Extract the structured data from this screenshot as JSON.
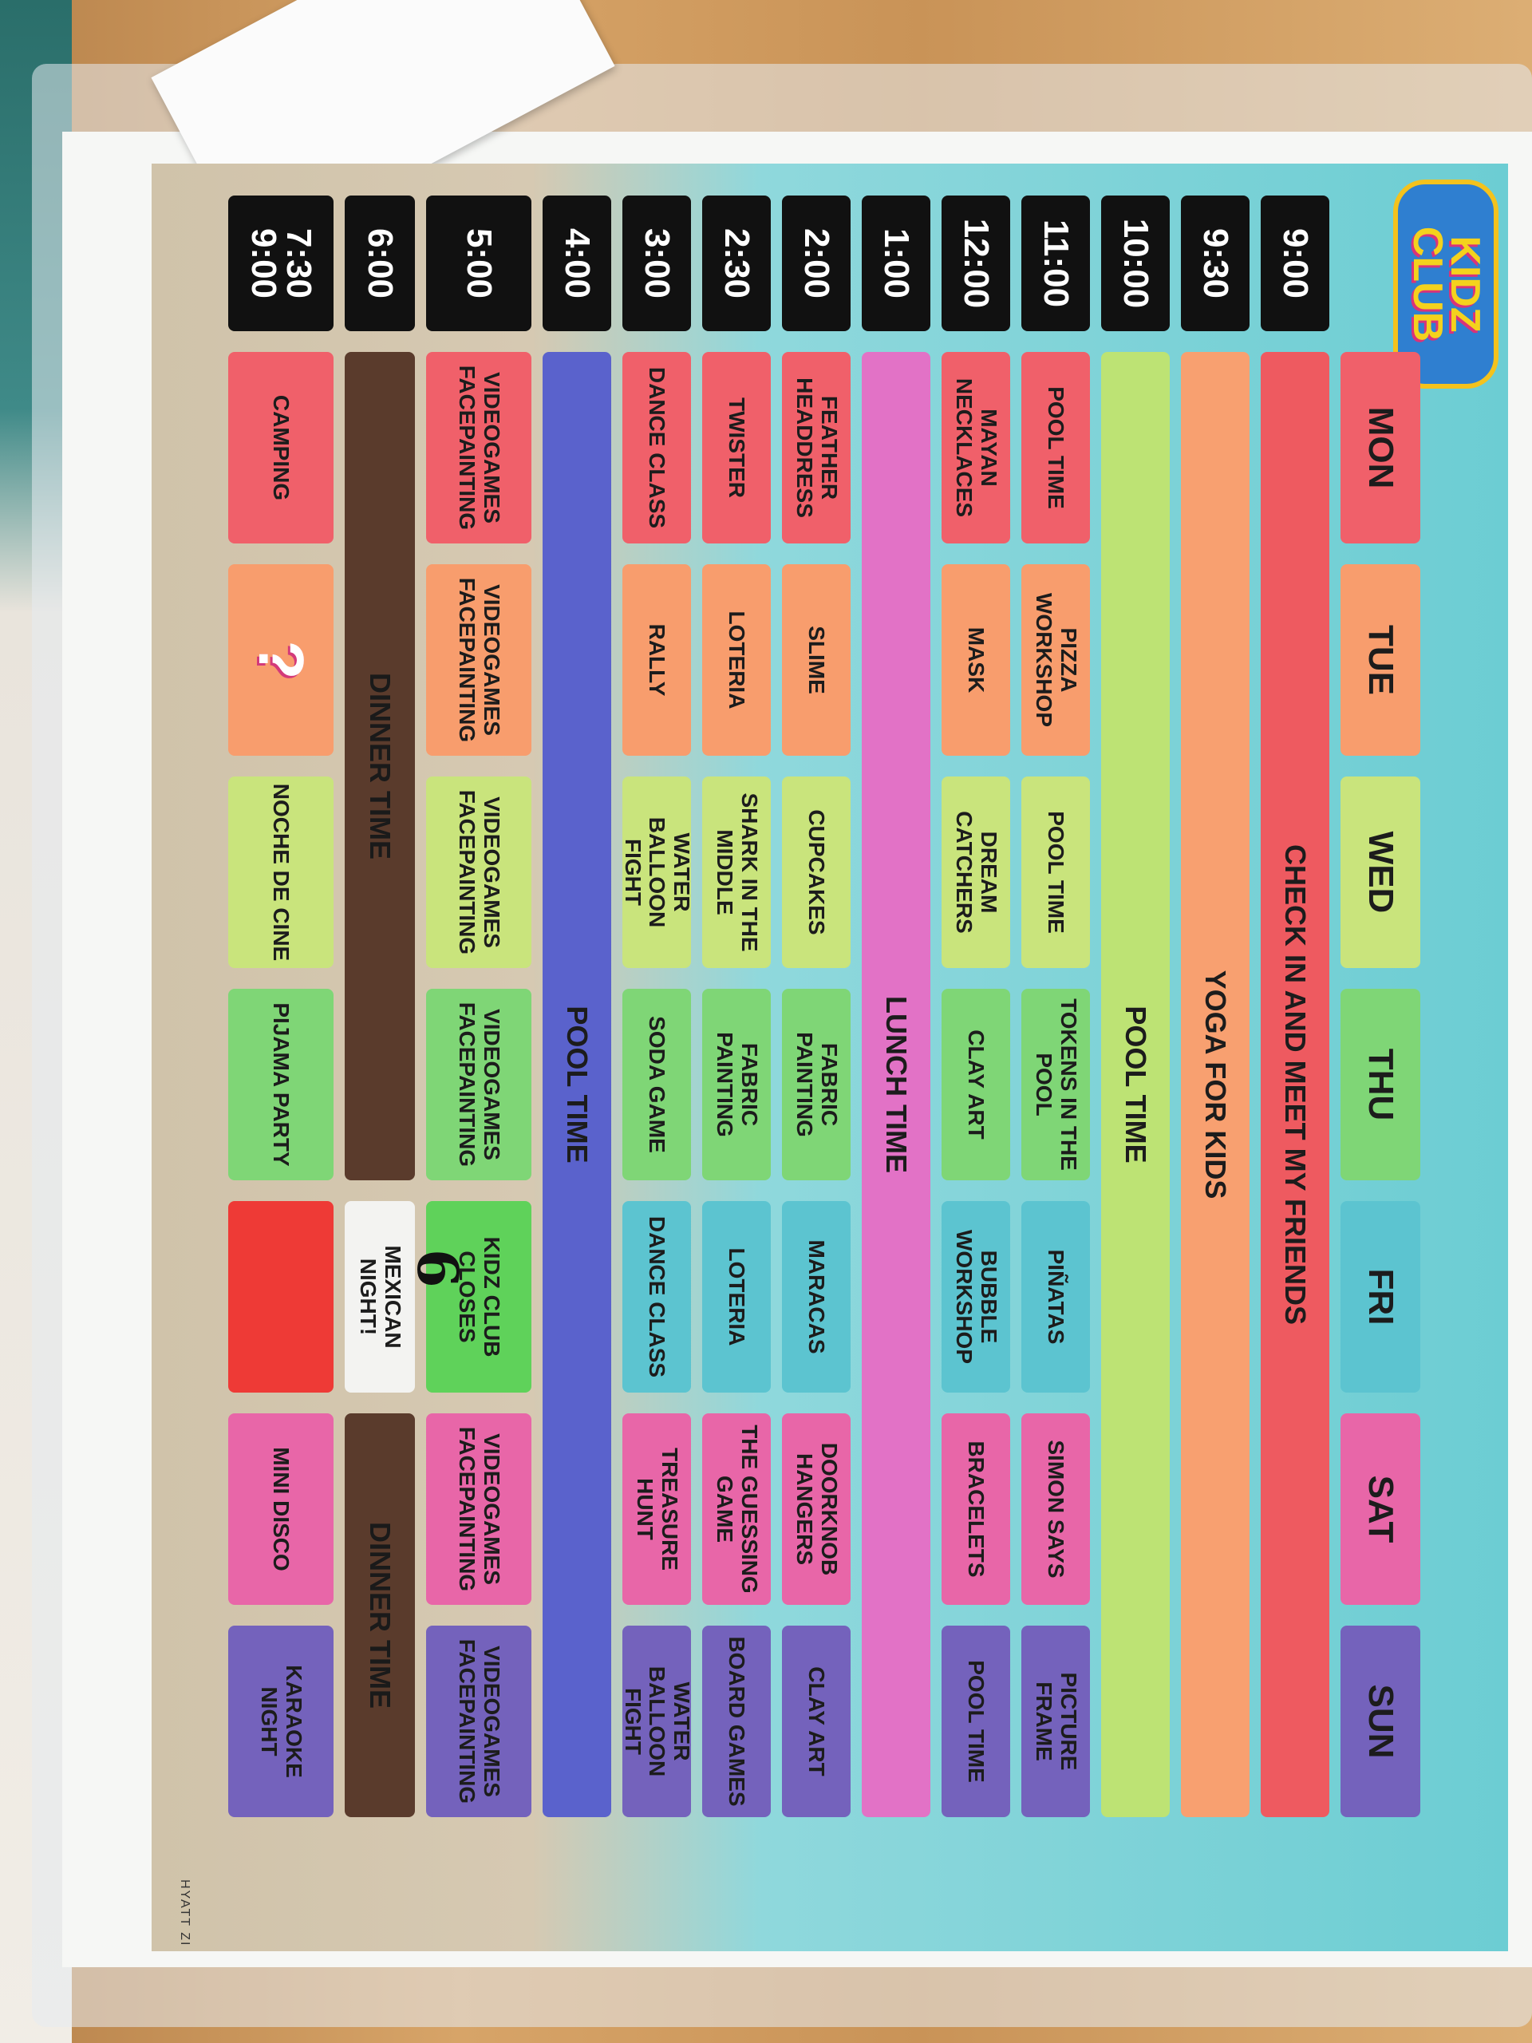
{
  "header": {
    "logo_text": "KIDZ CLUB"
  },
  "days": [
    {
      "label": "MON",
      "color": "#f0606a"
    },
    {
      "label": "TUE",
      "color": "#f89d6d"
    },
    {
      "label": "WED",
      "color": "#c9e47c"
    },
    {
      "label": "THU",
      "color": "#7fd676"
    },
    {
      "label": "FRI",
      "color": "#5cc4d0"
    },
    {
      "label": "SAT",
      "color": "#e866a8"
    },
    {
      "label": "SUN",
      "color": "#7462bc"
    }
  ],
  "rows": [
    {
      "time": "9:00",
      "cells": [
        {
          "text": "CHECK IN AND MEET MY FRIENDS",
          "span": 7,
          "color": "#ee5a60",
          "wide": true
        }
      ]
    },
    {
      "time": "9:30",
      "cells": [
        {
          "text": "YOGA FOR KIDS",
          "span": 7,
          "color": "#f8a070",
          "wide": true
        }
      ]
    },
    {
      "time": "10:00",
      "cells": [
        {
          "text": "POOL TIME",
          "span": 7,
          "color": "#bde374",
          "wide": true
        }
      ]
    },
    {
      "time": "11:00",
      "cells": [
        {
          "text": "POOL TIME",
          "color": "#f0606a"
        },
        {
          "text": "PIZZA WORKSHOP",
          "color": "#f89d6d"
        },
        {
          "text": "POOL TIME",
          "color": "#c9e47c"
        },
        {
          "text": "TOKENS IN THE POOL",
          "color": "#7fd676"
        },
        {
          "text": "PIÑATAS",
          "color": "#5cc4d0"
        },
        {
          "text": "SIMON SAYS",
          "color": "#e866a8"
        },
        {
          "text": "PICTURE FRAME",
          "color": "#7462bc"
        }
      ]
    },
    {
      "time": "12:00",
      "cells": [
        {
          "text": "MAYAN NECKLACES",
          "color": "#f0606a"
        },
        {
          "text": "MASK",
          "color": "#f89d6d"
        },
        {
          "text": "DREAM CATCHERS",
          "color": "#c9e47c"
        },
        {
          "text": "CLAY ART",
          "color": "#7fd676"
        },
        {
          "text": "BUBBLE WORKSHOP",
          "color": "#5cc4d0"
        },
        {
          "text": "BRACELETS",
          "color": "#e866a8"
        },
        {
          "text": "POOL TIME",
          "color": "#7462bc"
        }
      ]
    },
    {
      "time": "1:00",
      "cells": [
        {
          "text": "LUNCH TIME",
          "span": 7,
          "color": "#e272c6",
          "wide": true
        }
      ]
    },
    {
      "time": "2:00",
      "cells": [
        {
          "text": "FEATHER HEADDRESS",
          "color": "#f0606a"
        },
        {
          "text": "SLIME",
          "color": "#f89d6d"
        },
        {
          "text": "CUPCAKES",
          "color": "#c9e47c"
        },
        {
          "text": "FABRIC PAINTING",
          "color": "#7fd676"
        },
        {
          "text": "MARACAS",
          "color": "#5cc4d0"
        },
        {
          "text": "DOORKNOB HANGERS",
          "color": "#e866a8"
        },
        {
          "text": "CLAY ART",
          "color": "#7462bc"
        }
      ]
    },
    {
      "time": "2:30",
      "cells": [
        {
          "text": "TWISTER",
          "color": "#f0606a"
        },
        {
          "text": "LOTERIA",
          "color": "#f89d6d"
        },
        {
          "text": "SHARK IN THE MIDDLE",
          "color": "#c9e47c"
        },
        {
          "text": "FABRIC PAINTING",
          "color": "#7fd676"
        },
        {
          "text": "LOTERIA",
          "color": "#5cc4d0"
        },
        {
          "text": "THE GUESSING GAME",
          "color": "#e866a8"
        },
        {
          "text": "BOARD GAMES",
          "color": "#7462bc"
        }
      ]
    },
    {
      "time": "3:00",
      "cells": [
        {
          "text": "DANCE CLASS",
          "color": "#f0606a"
        },
        {
          "text": "RALLY",
          "color": "#f89d6d"
        },
        {
          "text": "WATER BALLOON FIGHT",
          "color": "#c9e47c"
        },
        {
          "text": "SODA GAME",
          "color": "#7fd676"
        },
        {
          "text": "DANCE CLASS",
          "color": "#5cc4d0"
        },
        {
          "text": "TREASURE HUNT",
          "color": "#e866a8"
        },
        {
          "text": "WATER BALLOON FIGHT",
          "color": "#7462bc"
        }
      ]
    },
    {
      "time": "4:00",
      "cells": [
        {
          "text": "POOL TIME",
          "span": 7,
          "color": "#5a62cc",
          "wide": true
        }
      ]
    },
    {
      "time": "5:00",
      "cells": [
        {
          "text": "VIDEOGAMES FACEPAINTING",
          "color": "#f0606a"
        },
        {
          "text": "VIDEOGAMES FACEPAINTING",
          "color": "#f89d6d"
        },
        {
          "text": "VIDEOGAMES FACEPAINTING",
          "color": "#c9e47c"
        },
        {
          "text": "VIDEOGAMES FACEPAINTING",
          "color": "#7fd676"
        },
        {
          "text": "KIDZ CLUB CLOSES",
          "color": "#5fd25a"
        },
        {
          "text": "VIDEOGAMES FACEPAINTING",
          "color": "#e866a8"
        },
        {
          "text": "VIDEOGAMES FACEPAINTING",
          "color": "#7462bc"
        }
      ]
    },
    {
      "time": "6:00",
      "cells": [
        {
          "text": "DINNER TIME",
          "span": 4,
          "color": "#5a3b2c",
          "wide": true
        },
        {
          "text": "MEXICAN NIGHT!",
          "color": "#f3f3f1"
        },
        {
          "text": "DINNER TIME",
          "span": 2,
          "color": "#5a3b2c",
          "wide": true
        }
      ]
    },
    {
      "time": "7:30\n9:00",
      "cells": [
        {
          "text": "CAMPING",
          "color": "#f0606a"
        },
        {
          "text": "?",
          "color": "#f89d6d",
          "wide": true
        },
        {
          "text": "NOCHE DE CINE",
          "color": "#c9e47c"
        },
        {
          "text": "PIJAMA PARTY",
          "color": "#7fd676"
        },
        {
          "text": "",
          "color": "#ee3a36"
        },
        {
          "text": "MINI DISCO",
          "color": "#e866a8"
        },
        {
          "text": "KARAOKE NIGHT",
          "color": "#7462bc"
        }
      ]
    }
  ],
  "handwritten_note": "6",
  "footer": "HYATT ZI"
}
